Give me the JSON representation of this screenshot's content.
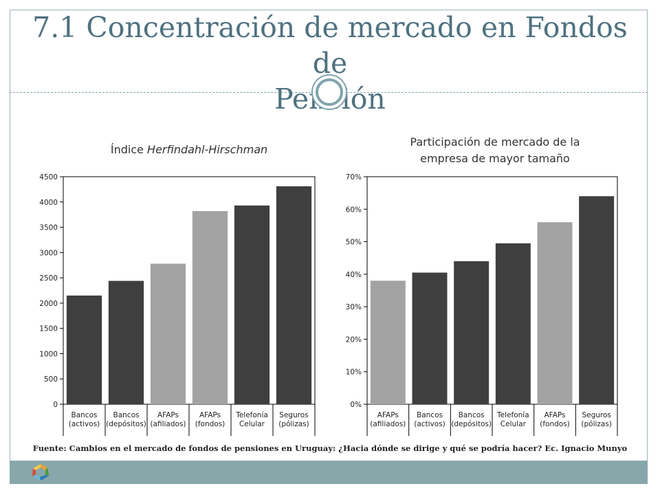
{
  "slide": {
    "title_line1": "7.1 Concentración de mercado en Fondos de",
    "title_line2": "Pensión",
    "source": "Fuente: Cambios en el mercado de fondos de pensiones en Uruguay: ¿Hacia dónde se dirige y qué se podría hacer? Ec. Ignacio Munyo"
  },
  "colors": {
    "dark_bar": "#3f3f3f",
    "light_bar": "#a3a3a3",
    "title": "#4e7180",
    "footer": "#87a7aa"
  },
  "chart_data": [
    {
      "type": "bar",
      "title_prefix": "Índice ",
      "title_italic": "Herfindahl-Hirschman",
      "categories": [
        [
          "Bancos",
          "(activos)"
        ],
        [
          "Bancos",
          "(depósitos)"
        ],
        [
          "AFAPs",
          "(afiliados)"
        ],
        [
          "AFAPs",
          "(fondos)"
        ],
        [
          "Telefonía",
          "Celular"
        ],
        [
          "Seguros",
          "(pólizas)"
        ]
      ],
      "values": [
        2150,
        2440,
        2780,
        3820,
        3930,
        4310
      ],
      "highlight": [
        false,
        false,
        true,
        true,
        false,
        false
      ],
      "ylim": [
        0,
        4500
      ],
      "yticks": [
        0,
        500,
        1000,
        1500,
        2000,
        2500,
        3000,
        3500,
        4000,
        4500
      ],
      "ytick_labels": [
        "0",
        "500",
        "1000",
        "1500",
        "2000",
        "2500",
        "3000",
        "3500",
        "4000",
        "4500"
      ]
    },
    {
      "type": "bar",
      "title_line1": "Participación de mercado de la",
      "title_line2": "empresa de mayor tamaño",
      "categories": [
        [
          "AFAPs",
          "(afiliados)"
        ],
        [
          "Bancos",
          "(activos)"
        ],
        [
          "Bancos",
          "(depósitos)"
        ],
        [
          "Telefonía",
          "Celular"
        ],
        [
          "AFAPs",
          "(fondos)"
        ],
        [
          "Seguros",
          "(pólizas)"
        ]
      ],
      "values": [
        0.38,
        0.405,
        0.44,
        0.495,
        0.56,
        0.64
      ],
      "highlight": [
        true,
        false,
        false,
        false,
        true,
        false
      ],
      "ylim": [
        0,
        0.7
      ],
      "yticks": [
        0,
        0.1,
        0.2,
        0.3,
        0.4,
        0.5,
        0.6,
        0.7
      ],
      "ytick_labels": [
        "0%",
        "10%",
        "20%",
        "30%",
        "40%",
        "50%",
        "60%",
        "70%"
      ]
    }
  ]
}
